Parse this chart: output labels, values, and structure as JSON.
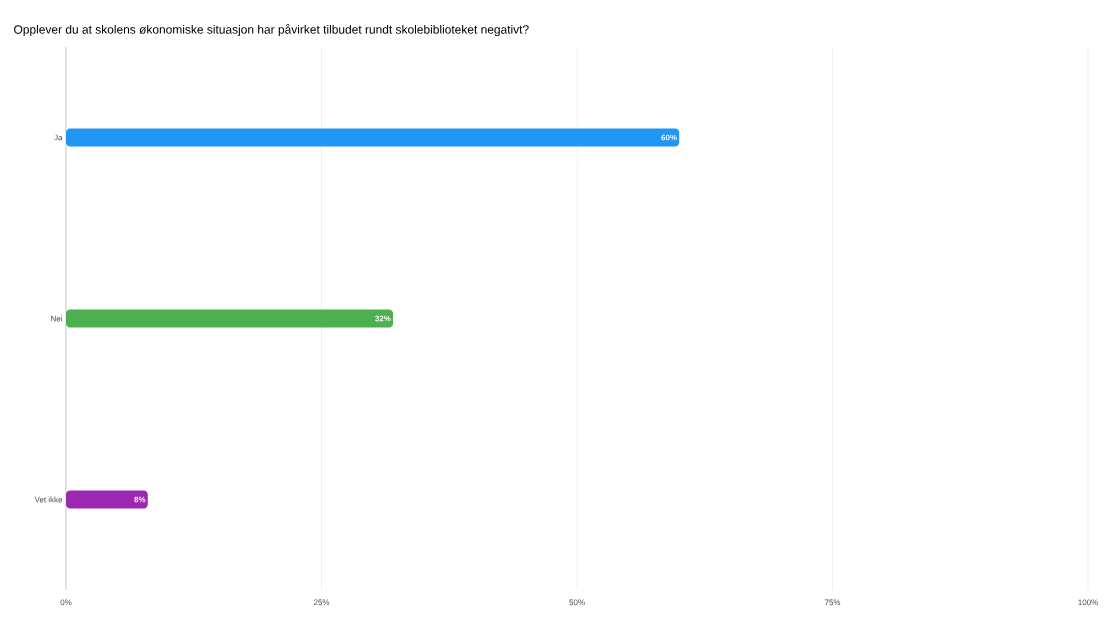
{
  "chart_data": {
    "type": "bar",
    "orientation": "horizontal",
    "title": "Opplever du at skolens økonomiske situasjon har påvirket tilbudet rundt skolebiblioteket negativt?",
    "categories": [
      "Ja",
      "Nei",
      "Vet ikke"
    ],
    "values": [
      60,
      32,
      8
    ],
    "colors": [
      "#2196f3",
      "#4caf50",
      "#9c27b0"
    ],
    "value_labels": [
      "60%",
      "32%",
      "8%"
    ],
    "xlim": [
      0,
      100
    ],
    "xticks": [
      {
        "value": 0,
        "label": "0%"
      },
      {
        "value": 25,
        "label": "25%"
      },
      {
        "value": 50,
        "label": "50%"
      },
      {
        "value": 75,
        "label": "75%"
      },
      {
        "value": 100,
        "label": "100%"
      }
    ],
    "grid": "x"
  }
}
